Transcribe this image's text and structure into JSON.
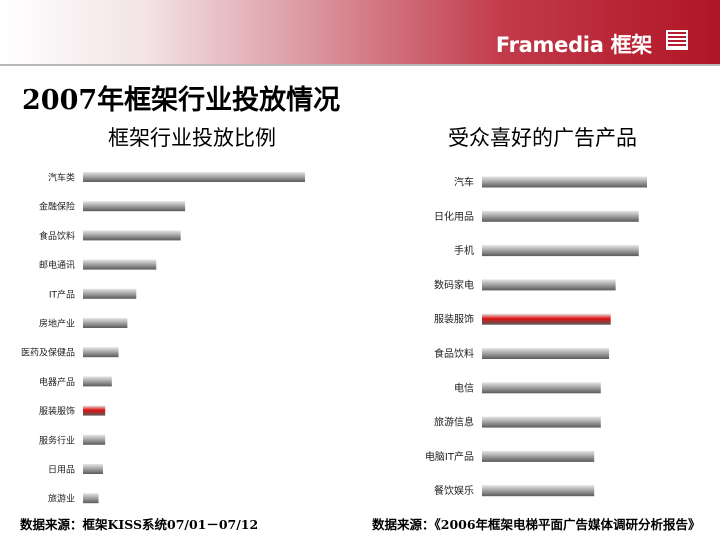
{
  "header": {
    "brand": "Framedia 框架"
  },
  "page_title": "2007年框架行业投放情况",
  "colors": {
    "bar": "#a8a8a8",
    "highlight": "#dd1111",
    "header": "#b01525"
  },
  "chart_data": [
    {
      "type": "bar",
      "orientation": "horizontal",
      "title": "框架行业投放比例",
      "categories": [
        "汽车类",
        "金融保险",
        "食品饮料",
        "邮电通讯",
        "IT产品",
        "房地产业",
        "医药及保健品",
        "电器产品",
        "服装服饰",
        "服务行业",
        "日用品",
        "旅游业"
      ],
      "values": [
        100,
        46,
        44,
        33,
        24,
        20,
        16,
        13,
        10,
        10,
        9,
        7
      ],
      "highlight": "服装服饰",
      "xlim": [
        0,
        100
      ],
      "axis_labels": "none",
      "source": "数据来源：框架KISS系统07/01－07/12"
    },
    {
      "type": "bar",
      "orientation": "horizontal",
      "title": "受众喜好的广告产品",
      "categories": [
        "汽车",
        "日化用品",
        "手机",
        "数码家电",
        "服装服饰",
        "食品饮料",
        "电信",
        "旅游信息",
        "电脑IT产品",
        "餐饮娱乐"
      ],
      "values": [
        100,
        95,
        95,
        81,
        78,
        77,
        72,
        72,
        68,
        68
      ],
      "highlight": "服装服饰",
      "xlim": [
        0,
        100
      ],
      "axis_labels": "none",
      "source": "数据来源：《2006年框架电梯平面广告媒体调研分析报告》"
    }
  ]
}
